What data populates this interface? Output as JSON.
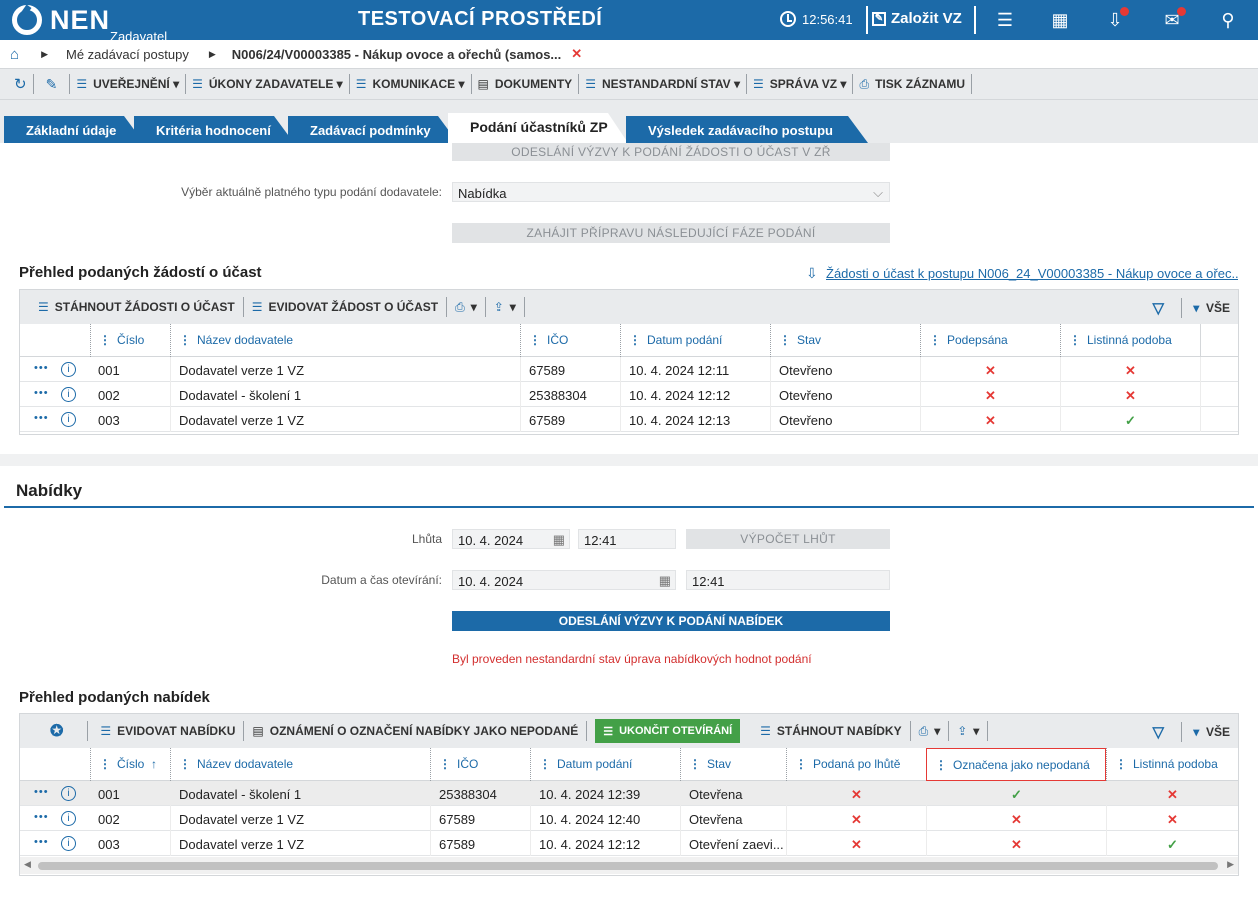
{
  "header": {
    "logo": "NEN",
    "logo_sub": "Zadavatel",
    "env_title": "TESTOVACÍ PROSTŘEDÍ",
    "time": "12:56:41",
    "new_vz": "Založit VZ"
  },
  "breadcrumb": {
    "item1": "Mé zadávací postupy",
    "item2": "N006/24/V00003385 - Nákup ovoce a ořechů (samos..."
  },
  "toolbar": {
    "uverejneni": "UVEŘEJNĚNÍ",
    "ukony": "ÚKONY ZADAVATELE",
    "komunikace": "KOMUNIKACE",
    "dokumenty": "DOKUMENTY",
    "nestandardni": "NESTANDARDNÍ STAV",
    "sprava": "SPRÁVA VZ",
    "tisk": "TISK ZÁZNAMU"
  },
  "tabs": [
    "Základní údaje",
    "Kritéria hodnocení",
    "Zadávací podmínky",
    "Podání účastníků ZP",
    "Výsledek zadávacího postupu"
  ],
  "top_form": {
    "btn_cut": "ODESLÁNÍ VÝZVY K PODÁNÍ ŽÁDOSTI O ÚČAST V ZŘ",
    "type_label": "Výběr aktuálně platného typu podání dodavatele:",
    "type_value": "Nabídka",
    "btn_next_phase": "ZAHÁJIT PŘÍPRAVU NÁSLEDUJÍCÍ FÁZE PODÁNÍ"
  },
  "zadosti": {
    "title": "Přehled podaných žádostí o účast",
    "link": "Žádosti o účast k postupu N006_24_V00003385 - Nákup ovoce a ořec...",
    "toolbar": {
      "download": "STÁHNOUT ŽÁDOSTI O ÚČAST",
      "register": "EVIDOVAT ŽÁDOST O ÚČAST",
      "all": "VŠE"
    },
    "columns": [
      "Číslo",
      "Název dodavatele",
      "IČO",
      "Datum podání",
      "Stav",
      "Podepsána",
      "Listinná podoba"
    ],
    "rows": [
      {
        "num": "001",
        "name": "Dodavatel verze 1 VZ",
        "ico": "67589",
        "date": "10. 4. 2024 12:11",
        "state": "Otevřeno",
        "signed": "✕",
        "paper": "✕"
      },
      {
        "num": "002",
        "name": "Dodavatel - školení 1",
        "ico": "25388304",
        "date": "10. 4. 2024 12:12",
        "state": "Otevřeno",
        "signed": "✕",
        "paper": "✕"
      },
      {
        "num": "003",
        "name": "Dodavatel verze 1 VZ",
        "ico": "67589",
        "date": "10. 4. 2024 12:13",
        "state": "Otevřeno",
        "signed": "✕",
        "paper": "✓"
      }
    ]
  },
  "nabidky": {
    "title": "Nabídky",
    "deadline_label": "Lhůta",
    "deadline_date": "10. 4. 2024",
    "deadline_time": "12:41",
    "btn_calc": "VÝPOČET LHŮT",
    "open_label": "Datum a čas otevírání:",
    "open_date": "10. 4. 2024",
    "open_time": "12:41",
    "btn_send": "ODESLÁNÍ VÝZVY K PODÁNÍ NABÍDEK",
    "warning": "Byl proveden nestandardní stav úprava nabídkových hodnot podání"
  },
  "prehled_nabidek": {
    "title": "Přehled podaných nabídek",
    "toolbar": {
      "register": "EVIDOVAT NABÍDKU",
      "notice": "OZNÁMENÍ O OZNAČENÍ NABÍDKY JAKO NEPODANÉ",
      "finish": "UKONČIT OTEVÍRÁNÍ",
      "download": "STÁHNOUT NABÍDKY",
      "all": "VŠE"
    },
    "columns": [
      "Číslo",
      "Název dodavatele",
      "IČO",
      "Datum podání",
      "Stav",
      "Podaná po lhůtě",
      "Označena jako nepodaná",
      "Listinná podoba"
    ],
    "rows": [
      {
        "num": "001",
        "name": "Dodavatel - školení 1",
        "ico": "25388304",
        "date": "10. 4. 2024 12:39",
        "state": "Otevřena",
        "late": "✕",
        "notsub": "✓",
        "paper": "✕"
      },
      {
        "num": "002",
        "name": "Dodavatel verze 1 VZ",
        "ico": "67589",
        "date": "10. 4. 2024 12:40",
        "state": "Otevřena",
        "late": "✕",
        "notsub": "✕",
        "paper": "✕"
      },
      {
        "num": "003",
        "name": "Dodavatel verze 1 VZ",
        "ico": "67589",
        "date": "10. 4. 2024 12:12",
        "state": "Otevření zaevi...",
        "late": "✕",
        "notsub": "✕",
        "paper": "✓"
      }
    ]
  },
  "icons": {
    "row_menu": "•••",
    "info": "i",
    "cross": "✕",
    "check": "✓"
  },
  "colors": {
    "brand": "#1c6aa8",
    "cross": "#e53935",
    "check": "#43a047",
    "finish_btn": "#43a047",
    "warning": "#d32f2f"
  }
}
